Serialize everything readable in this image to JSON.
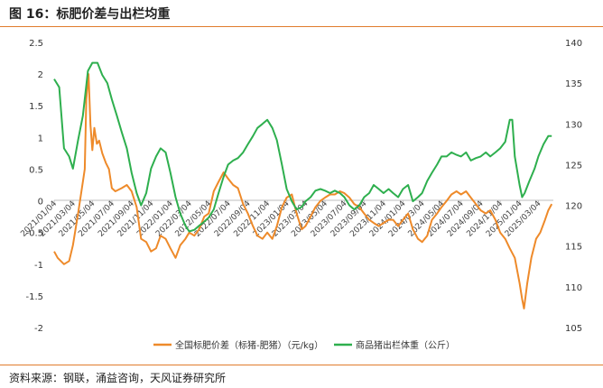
{
  "figure": {
    "title": "图 16：标肥价差与出栏均重",
    "source": "资料来源：钢联，涌益咨询，天风证券研究所"
  },
  "colors": {
    "orange": "#EE8A2A",
    "green": "#2EAF4E",
    "rule": "#E07B2C"
  },
  "chart_data": {
    "type": "line",
    "x_tick_labels": [
      "2021/01/04",
      "2021/03/04",
      "2021/05/04",
      "2021/07/04",
      "2021/09/04",
      "2021/11/04",
      "2022/01/04",
      "2022/03/04",
      "2022/05/04",
      "2022/07/04",
      "2022/09/04",
      "2022/11/04",
      "2023/01/04",
      "2023/03/04",
      "2023/05/04",
      "2023/07/04",
      "2023/09/04",
      "2023/11/04",
      "2024/01/04",
      "2024/03/04",
      "2024/05/04",
      "2024/07/04",
      "2024/09/04",
      "2024/11/04",
      "2025/01/04",
      "2025/03/04"
    ],
    "y_left": {
      "min": -2,
      "max": 2.5,
      "ticks": [
        "-2",
        "-1.5",
        "-1",
        "-0.5",
        "0",
        "0.5",
        "1",
        "1.5",
        "2",
        "2.5"
      ]
    },
    "y_right": {
      "min": 105,
      "max": 140,
      "ticks": [
        "105",
        "110",
        "115",
        "120",
        "125",
        "130",
        "135",
        "140"
      ]
    },
    "legend_position": "bottom",
    "series": [
      {
        "name": "全国标肥价差（标猪-肥猪）（元/kg）",
        "axis": "left",
        "color": "#EE8A2A",
        "points": [
          [
            "2021/01/04",
            -0.8
          ],
          [
            "2021/01/15",
            -0.9
          ],
          [
            "2021/02/04",
            -1.0
          ],
          [
            "2021/02/20",
            -0.95
          ],
          [
            "2021/03/04",
            -0.7
          ],
          [
            "2021/03/20",
            -0.2
          ],
          [
            "2021/04/04",
            0.3
          ],
          [
            "2021/04/10",
            0.5
          ],
          [
            "2021/04/15",
            1.6
          ],
          [
            "2021/04/22",
            2.0
          ],
          [
            "2021/04/28",
            1.2
          ],
          [
            "2021/05/04",
            0.8
          ],
          [
            "2021/05/10",
            1.15
          ],
          [
            "2021/05/18",
            0.9
          ],
          [
            "2021/05/25",
            0.95
          ],
          [
            "2021/06/04",
            0.75
          ],
          [
            "2021/06/15",
            0.6
          ],
          [
            "2021/06/25",
            0.5
          ],
          [
            "2021/07/04",
            0.2
          ],
          [
            "2021/07/15",
            0.15
          ],
          [
            "2021/08/04",
            0.2
          ],
          [
            "2021/08/20",
            0.25
          ],
          [
            "2021/09/04",
            0.15
          ],
          [
            "2021/09/20",
            -0.1
          ],
          [
            "2021/10/04",
            -0.6
          ],
          [
            "2021/10/20",
            -0.65
          ],
          [
            "2021/11/04",
            -0.8
          ],
          [
            "2021/11/20",
            -0.75
          ],
          [
            "2021/12/04",
            -0.55
          ],
          [
            "2021/12/20",
            -0.6
          ],
          [
            "2022/01/04",
            -0.75
          ],
          [
            "2022/01/20",
            -0.9
          ],
          [
            "2022/02/04",
            -0.7
          ],
          [
            "2022/02/20",
            -0.6
          ],
          [
            "2022/03/04",
            -0.5
          ],
          [
            "2022/03/20",
            -0.55
          ],
          [
            "2022/04/04",
            -0.45
          ],
          [
            "2022/04/20",
            -0.25
          ],
          [
            "2022/05/04",
            -0.2
          ],
          [
            "2022/05/20",
            0.15
          ],
          [
            "2022/06/04",
            0.3
          ],
          [
            "2022/06/20",
            0.45
          ],
          [
            "2022/07/04",
            0.35
          ],
          [
            "2022/07/20",
            0.25
          ],
          [
            "2022/08/04",
            0.2
          ],
          [
            "2022/08/20",
            -0.05
          ],
          [
            "2022/09/04",
            -0.2
          ],
          [
            "2022/09/20",
            -0.4
          ],
          [
            "2022/10/04",
            -0.55
          ],
          [
            "2022/10/20",
            -0.6
          ],
          [
            "2022/11/04",
            -0.5
          ],
          [
            "2022/11/20",
            -0.6
          ],
          [
            "2022/12/04",
            -0.4
          ],
          [
            "2022/12/20",
            -0.1
          ],
          [
            "2023/01/04",
            0.05
          ],
          [
            "2023/01/20",
            0.1
          ],
          [
            "2023/02/04",
            -0.2
          ],
          [
            "2023/02/20",
            -0.45
          ],
          [
            "2023/03/04",
            -0.4
          ],
          [
            "2023/03/20",
            -0.25
          ],
          [
            "2023/04/04",
            -0.1
          ],
          [
            "2023/04/20",
            0.0
          ],
          [
            "2023/05/04",
            0.05
          ],
          [
            "2023/05/20",
            0.1
          ],
          [
            "2023/06/04",
            0.1
          ],
          [
            "2023/06/20",
            0.15
          ],
          [
            "2023/07/04",
            0.12
          ],
          [
            "2023/07/20",
            0.05
          ],
          [
            "2023/08/04",
            -0.05
          ],
          [
            "2023/08/20",
            -0.1
          ],
          [
            "2023/09/04",
            -0.2
          ],
          [
            "2023/09/20",
            -0.3
          ],
          [
            "2023/10/04",
            -0.35
          ],
          [
            "2023/10/20",
            -0.4
          ],
          [
            "2023/11/04",
            -0.35
          ],
          [
            "2023/11/20",
            -0.3
          ],
          [
            "2023/12/04",
            -0.3
          ],
          [
            "2023/12/20",
            -0.4
          ],
          [
            "2024/01/04",
            -0.3
          ],
          [
            "2024/01/20",
            -0.2
          ],
          [
            "2024/02/04",
            -0.45
          ],
          [
            "2024/02/20",
            -0.6
          ],
          [
            "2024/03/04",
            -0.65
          ],
          [
            "2024/03/20",
            -0.55
          ],
          [
            "2024/04/04",
            -0.3
          ],
          [
            "2024/04/20",
            -0.2
          ],
          [
            "2024/05/04",
            -0.1
          ],
          [
            "2024/05/20",
            0.0
          ],
          [
            "2024/06/04",
            0.1
          ],
          [
            "2024/06/20",
            0.15
          ],
          [
            "2024/07/04",
            0.1
          ],
          [
            "2024/07/20",
            0.15
          ],
          [
            "2024/08/04",
            0.05
          ],
          [
            "2024/08/20",
            -0.05
          ],
          [
            "2024/09/04",
            -0.15
          ],
          [
            "2024/09/20",
            -0.2
          ],
          [
            "2024/10/04",
            -0.15
          ],
          [
            "2024/10/20",
            -0.3
          ],
          [
            "2024/11/04",
            -0.5
          ],
          [
            "2024/11/20",
            -0.6
          ],
          [
            "2024/12/04",
            -0.75
          ],
          [
            "2024/12/20",
            -0.9
          ],
          [
            "2025/01/04",
            -1.3
          ],
          [
            "2025/01/12",
            -1.55
          ],
          [
            "2025/01/18",
            -1.7
          ],
          [
            "2025/01/28",
            -1.3
          ],
          [
            "2025/02/10",
            -0.9
          ],
          [
            "2025/02/25",
            -0.6
          ],
          [
            "2025/03/10",
            -0.5
          ],
          [
            "2025/03/25",
            -0.3
          ],
          [
            "2025/04/04",
            -0.15
          ],
          [
            "2025/04/15",
            -0.05
          ]
        ]
      },
      {
        "name": "商品猪出栏体重（公斤）",
        "axis": "right",
        "color": "#2EAF4E",
        "points": [
          [
            "2021/01/04",
            135.5
          ],
          [
            "2021/01/20",
            134.5
          ],
          [
            "2021/02/04",
            127
          ],
          [
            "2021/02/20",
            126
          ],
          [
            "2021/03/04",
            124.5
          ],
          [
            "2021/03/20",
            128
          ],
          [
            "2021/04/04",
            131
          ],
          [
            "2021/04/20",
            136.5
          ],
          [
            "2021/05/04",
            137.5
          ],
          [
            "2021/05/20",
            137.5
          ],
          [
            "2021/06/04",
            136
          ],
          [
            "2021/06/20",
            135
          ],
          [
            "2021/07/04",
            133
          ],
          [
            "2021/07/20",
            131
          ],
          [
            "2021/08/04",
            129
          ],
          [
            "2021/08/20",
            127
          ],
          [
            "2021/09/04",
            124
          ],
          [
            "2021/09/20",
            121.5
          ],
          [
            "2021/10/04",
            120
          ],
          [
            "2021/10/20",
            121.5
          ],
          [
            "2021/11/04",
            124.5
          ],
          [
            "2021/11/20",
            126
          ],
          [
            "2021/12/04",
            127
          ],
          [
            "2021/12/20",
            126.5
          ],
          [
            "2022/01/04",
            124
          ],
          [
            "2022/01/20",
            121
          ],
          [
            "2022/02/04",
            119
          ],
          [
            "2022/02/20",
            117.5
          ],
          [
            "2022/03/04",
            116.8
          ],
          [
            "2022/03/20",
            117
          ],
          [
            "2022/04/04",
            117.5
          ],
          [
            "2022/04/20",
            118
          ],
          [
            "2022/05/04",
            118.5
          ],
          [
            "2022/05/20",
            119.5
          ],
          [
            "2022/06/04",
            121.5
          ],
          [
            "2022/06/20",
            123.5
          ],
          [
            "2022/07/04",
            125
          ],
          [
            "2022/07/20",
            125.5
          ],
          [
            "2022/08/04",
            125.8
          ],
          [
            "2022/08/20",
            126.5
          ],
          [
            "2022/09/04",
            127.5
          ],
          [
            "2022/09/20",
            128.5
          ],
          [
            "2022/10/04",
            129.5
          ],
          [
            "2022/10/20",
            130
          ],
          [
            "2022/11/04",
            130.5
          ],
          [
            "2022/11/20",
            129.5
          ],
          [
            "2022/12/04",
            128
          ],
          [
            "2022/12/20",
            125
          ],
          [
            "2023/01/04",
            122
          ],
          [
            "2023/01/20",
            120.5
          ],
          [
            "2023/02/04",
            119.5
          ],
          [
            "2023/02/20",
            119.8
          ],
          [
            "2023/03/04",
            120.5
          ],
          [
            "2023/03/20",
            121
          ],
          [
            "2023/04/04",
            121.8
          ],
          [
            "2023/04/20",
            122
          ],
          [
            "2023/05/04",
            121.8
          ],
          [
            "2023/05/20",
            121.5
          ],
          [
            "2023/06/04",
            121.8
          ],
          [
            "2023/06/20",
            121.5
          ],
          [
            "2023/07/04",
            121
          ],
          [
            "2023/07/20",
            120
          ],
          [
            "2023/08/04",
            119.5
          ],
          [
            "2023/08/20",
            120
          ],
          [
            "2023/09/04",
            121
          ],
          [
            "2023/09/20",
            121.5
          ],
          [
            "2023/10/04",
            122.5
          ],
          [
            "2023/10/20",
            122
          ],
          [
            "2023/11/04",
            121.5
          ],
          [
            "2023/11/20",
            122
          ],
          [
            "2023/12/04",
            121.5
          ],
          [
            "2023/12/20",
            121
          ],
          [
            "2024/01/04",
            122
          ],
          [
            "2024/01/20",
            122.5
          ],
          [
            "2024/02/04",
            120.5
          ],
          [
            "2024/02/20",
            121
          ],
          [
            "2024/03/04",
            121.5
          ],
          [
            "2024/03/20",
            123
          ],
          [
            "2024/04/04",
            124
          ],
          [
            "2024/04/20",
            125
          ],
          [
            "2024/05/04",
            126
          ],
          [
            "2024/05/20",
            126
          ],
          [
            "2024/06/04",
            126.5
          ],
          [
            "2024/06/20",
            126.2
          ],
          [
            "2024/07/04",
            126
          ],
          [
            "2024/07/20",
            126.5
          ],
          [
            "2024/08/04",
            125.5
          ],
          [
            "2024/08/20",
            125.8
          ],
          [
            "2024/09/04",
            126
          ],
          [
            "2024/09/20",
            126.5
          ],
          [
            "2024/10/04",
            126
          ],
          [
            "2024/10/20",
            126.5
          ],
          [
            "2024/11/04",
            127
          ],
          [
            "2024/11/20",
            127.8
          ],
          [
            "2024/12/04",
            130.5
          ],
          [
            "2024/12/12",
            130.5
          ],
          [
            "2024/12/20",
            126
          ],
          [
            "2025/01/04",
            122.5
          ],
          [
            "2025/01/12",
            121
          ],
          [
            "2025/01/20",
            121.5
          ],
          [
            "2025/02/04",
            123
          ],
          [
            "2025/02/20",
            124.5
          ],
          [
            "2025/03/04",
            126
          ],
          [
            "2025/03/20",
            127.5
          ],
          [
            "2025/04/04",
            128.5
          ],
          [
            "2025/04/15",
            128.5
          ]
        ]
      }
    ]
  }
}
